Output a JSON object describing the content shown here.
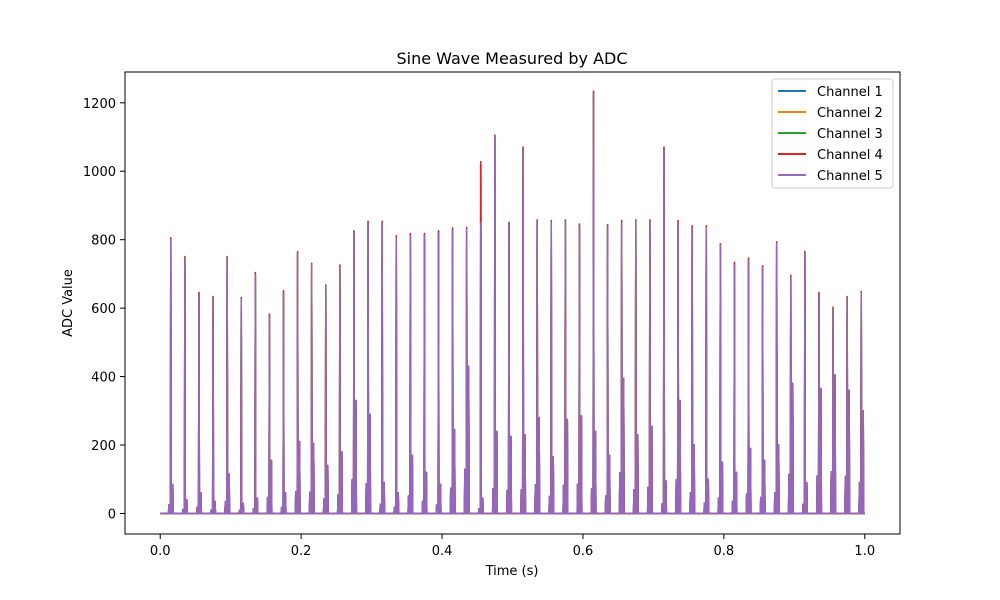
{
  "chart_data": {
    "type": "line",
    "title": "Sine Wave Measured by ADC",
    "xlabel": "Time (s)",
    "ylabel": "ADC Value",
    "xlim": [
      -0.05,
      1.05
    ],
    "ylim": [
      -60,
      1290
    ],
    "xticks": [
      0.0,
      0.2,
      0.4,
      0.6,
      0.8,
      1.0
    ],
    "xtick_labels": [
      "0.0",
      "0.2",
      "0.4",
      "0.6",
      "0.8",
      "1.0"
    ],
    "yticks": [
      0,
      200,
      400,
      600,
      800,
      1000,
      1200
    ],
    "ytick_labels": [
      "0",
      "200",
      "400",
      "600",
      "800",
      "1000",
      "1200"
    ],
    "grid": false,
    "legend_position": "top-right",
    "pulse_times": [
      0.015,
      0.035,
      0.055,
      0.075,
      0.095,
      0.115,
      0.135,
      0.155,
      0.175,
      0.195,
      0.215,
      0.235,
      0.255,
      0.275,
      0.295,
      0.315,
      0.335,
      0.355,
      0.375,
      0.395,
      0.415,
      0.435,
      0.455,
      0.475,
      0.495,
      0.515,
      0.535,
      0.555,
      0.575,
      0.595,
      0.615,
      0.635,
      0.655,
      0.675,
      0.695,
      0.715,
      0.735,
      0.755,
      0.775,
      0.795,
      0.815,
      0.835,
      0.855,
      0.875,
      0.895,
      0.915,
      0.935,
      0.955,
      0.975,
      0.995
    ],
    "pulse_peaks": [
      800,
      745,
      640,
      628,
      745,
      625,
      698,
      577,
      645,
      760,
      725,
      662,
      720,
      820,
      848,
      848,
      805,
      812,
      812,
      820,
      828,
      830,
      1022,
      1100,
      845,
      1065,
      852,
      850,
      852,
      840,
      1228,
      838,
      850,
      852,
      852,
      1065,
      850,
      835,
      835,
      782,
      728,
      740,
      718,
      788,
      690,
      760,
      640,
      597,
      628,
      643
    ],
    "pulse_secondary": [
      85,
      40,
      60,
      35,
      115,
      30,
      45,
      155,
      60,
      210,
      205,
      140,
      180,
      330,
      290,
      90,
      60,
      170,
      120,
      85,
      245,
      430,
      45,
      240,
      225,
      230,
      280,
      165,
      275,
      285,
      240,
      170,
      395,
      230,
      255,
      95,
      330,
      200,
      100,
      150,
      120,
      190,
      155,
      200,
      380,
      90,
      365,
      405,
      360,
      300
    ],
    "series": [
      {
        "name": "Channel 1",
        "color": "#1f77b4",
        "offset": 0
      },
      {
        "name": "Channel 2",
        "color": "#ff7f0e",
        "offset": 0
      },
      {
        "name": "Channel 3",
        "color": "#2ca02c",
        "offset": 0
      },
      {
        "name": "Channel 4",
        "color": "#d62728",
        "offset": 0
      },
      {
        "name": "Channel 5",
        "color": "#9467bd",
        "offset": 0
      }
    ]
  }
}
